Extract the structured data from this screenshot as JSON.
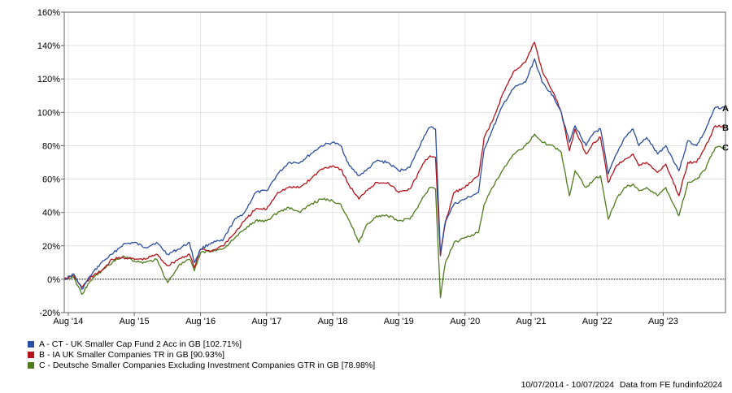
{
  "chart_data": {
    "type": "line",
    "title": "",
    "xlabel": "",
    "ylabel": "",
    "ylim": [
      -20,
      160
    ],
    "xlim": [
      "2014-07-10",
      "2024-07-10"
    ],
    "y_ticks": [
      "-20%",
      "0%",
      "20%",
      "40%",
      "60%",
      "80%",
      "100%",
      "120%",
      "140%",
      "160%"
    ],
    "y_tick_values": [
      -20,
      0,
      20,
      40,
      60,
      80,
      100,
      120,
      140,
      160
    ],
    "x_ticks": [
      "Aug '14",
      "Aug '15",
      "Aug '16",
      "Aug '17",
      "Aug '18",
      "Aug '19",
      "Aug '20",
      "Aug '21",
      "Aug '22",
      "Aug '23"
    ],
    "x_tick_dates": [
      "2014-08-01",
      "2015-08-01",
      "2016-08-01",
      "2017-08-01",
      "2018-08-01",
      "2019-08-01",
      "2020-08-01",
      "2021-08-01",
      "2022-08-01",
      "2023-08-01"
    ],
    "grid": true,
    "legend_position": "bottom-left",
    "series": [
      {
        "name": "A - CT - UK Smaller Cap Fund 2 Acc in GB [102.71%]",
        "end_label": "A",
        "color": "#2a4d9e",
        "points": [
          [
            "2014-07-10",
            0
          ],
          [
            "2014-09-01",
            3
          ],
          [
            "2014-10-15",
            -6
          ],
          [
            "2014-12-01",
            2
          ],
          [
            "2015-02-01",
            10
          ],
          [
            "2015-04-01",
            15
          ],
          [
            "2015-06-01",
            21
          ],
          [
            "2015-08-01",
            22
          ],
          [
            "2015-10-01",
            19
          ],
          [
            "2015-12-01",
            22
          ],
          [
            "2016-02-01",
            15
          ],
          [
            "2016-04-01",
            18
          ],
          [
            "2016-06-01",
            22
          ],
          [
            "2016-06-28",
            10
          ],
          [
            "2016-08-01",
            18
          ],
          [
            "2016-10-01",
            22
          ],
          [
            "2016-12-01",
            23
          ],
          [
            "2017-02-01",
            35
          ],
          [
            "2017-04-01",
            40
          ],
          [
            "2017-06-01",
            52
          ],
          [
            "2017-08-01",
            53
          ],
          [
            "2017-10-01",
            63
          ],
          [
            "2017-12-01",
            70
          ],
          [
            "2018-02-01",
            70
          ],
          [
            "2018-04-01",
            75
          ],
          [
            "2018-06-01",
            80
          ],
          [
            "2018-08-01",
            82
          ],
          [
            "2018-09-15",
            80
          ],
          [
            "2018-11-01",
            68
          ],
          [
            "2018-12-24",
            62
          ],
          [
            "2019-02-01",
            65
          ],
          [
            "2019-04-01",
            71
          ],
          [
            "2019-06-01",
            70
          ],
          [
            "2019-08-01",
            65
          ],
          [
            "2019-10-01",
            67
          ],
          [
            "2019-12-20",
            86
          ],
          [
            "2020-01-20",
            91
          ],
          [
            "2020-02-20",
            90
          ],
          [
            "2020-03-18",
            15
          ],
          [
            "2020-04-15",
            35
          ],
          [
            "2020-06-01",
            45
          ],
          [
            "2020-08-01",
            48
          ],
          [
            "2020-10-15",
            52
          ],
          [
            "2020-11-15",
            78
          ],
          [
            "2021-01-01",
            90
          ],
          [
            "2021-03-01",
            105
          ],
          [
            "2021-05-01",
            115
          ],
          [
            "2021-07-01",
            118
          ],
          [
            "2021-08-20",
            132
          ],
          [
            "2021-10-01",
            118
          ],
          [
            "2021-12-01",
            110
          ],
          [
            "2022-01-15",
            100
          ],
          [
            "2022-03-01",
            82
          ],
          [
            "2022-04-01",
            92
          ],
          [
            "2022-06-01",
            80
          ],
          [
            "2022-07-15",
            88
          ],
          [
            "2022-08-20",
            90
          ],
          [
            "2022-10-01",
            63
          ],
          [
            "2022-11-15",
            75
          ],
          [
            "2023-01-01",
            85
          ],
          [
            "2023-02-15",
            90
          ],
          [
            "2023-03-20",
            80
          ],
          [
            "2023-05-01",
            85
          ],
          [
            "2023-07-01",
            75
          ],
          [
            "2023-08-15",
            80
          ],
          [
            "2023-10-27",
            65
          ],
          [
            "2023-12-15",
            83
          ],
          [
            "2024-02-01",
            80
          ],
          [
            "2024-03-15",
            88
          ],
          [
            "2024-05-15",
            103
          ],
          [
            "2024-07-10",
            102.71
          ]
        ]
      },
      {
        "name": "B - IA UK Smaller Companies TR in GB [90.93%]",
        "end_label": "B",
        "color": "#b5121b",
        "points": [
          [
            "2014-07-10",
            0
          ],
          [
            "2014-09-01",
            2
          ],
          [
            "2014-10-15",
            -5
          ],
          [
            "2014-12-01",
            1
          ],
          [
            "2015-02-01",
            5
          ],
          [
            "2015-04-01",
            12
          ],
          [
            "2015-06-01",
            13
          ],
          [
            "2015-08-01",
            12
          ],
          [
            "2015-10-01",
            12
          ],
          [
            "2015-12-01",
            15
          ],
          [
            "2016-02-01",
            8
          ],
          [
            "2016-04-01",
            12
          ],
          [
            "2016-06-01",
            15
          ],
          [
            "2016-06-28",
            7
          ],
          [
            "2016-08-01",
            18
          ],
          [
            "2016-10-01",
            17
          ],
          [
            "2016-12-01",
            20
          ],
          [
            "2017-02-01",
            27
          ],
          [
            "2017-04-01",
            35
          ],
          [
            "2017-06-01",
            42
          ],
          [
            "2017-08-01",
            42
          ],
          [
            "2017-10-01",
            52
          ],
          [
            "2017-12-01",
            55
          ],
          [
            "2018-02-01",
            55
          ],
          [
            "2018-04-01",
            60
          ],
          [
            "2018-06-01",
            66
          ],
          [
            "2018-08-01",
            68
          ],
          [
            "2018-09-15",
            66
          ],
          [
            "2018-11-01",
            56
          ],
          [
            "2018-12-24",
            48
          ],
          [
            "2019-02-01",
            53
          ],
          [
            "2019-04-01",
            58
          ],
          [
            "2019-06-01",
            58
          ],
          [
            "2019-08-01",
            52
          ],
          [
            "2019-10-01",
            54
          ],
          [
            "2019-12-20",
            70
          ],
          [
            "2020-01-20",
            74
          ],
          [
            "2020-02-20",
            73
          ],
          [
            "2020-03-18",
            14
          ],
          [
            "2020-04-15",
            34
          ],
          [
            "2020-06-01",
            52
          ],
          [
            "2020-08-01",
            55
          ],
          [
            "2020-10-15",
            62
          ],
          [
            "2020-11-15",
            85
          ],
          [
            "2021-01-01",
            95
          ],
          [
            "2021-03-01",
            112
          ],
          [
            "2021-05-01",
            125
          ],
          [
            "2021-07-01",
            130
          ],
          [
            "2021-08-20",
            142
          ],
          [
            "2021-10-01",
            125
          ],
          [
            "2021-12-01",
            112
          ],
          [
            "2022-01-15",
            100
          ],
          [
            "2022-03-01",
            77
          ],
          [
            "2022-04-01",
            90
          ],
          [
            "2022-06-01",
            75
          ],
          [
            "2022-07-15",
            82
          ],
          [
            "2022-08-20",
            85
          ],
          [
            "2022-10-01",
            58
          ],
          [
            "2022-11-15",
            68
          ],
          [
            "2023-01-01",
            72
          ],
          [
            "2023-02-15",
            75
          ],
          [
            "2023-03-20",
            68
          ],
          [
            "2023-05-01",
            70
          ],
          [
            "2023-07-01",
            64
          ],
          [
            "2023-08-15",
            69
          ],
          [
            "2023-10-27",
            50
          ],
          [
            "2023-12-15",
            70
          ],
          [
            "2024-02-01",
            70
          ],
          [
            "2024-03-15",
            78
          ],
          [
            "2024-05-15",
            92
          ],
          [
            "2024-07-10",
            90.93
          ]
        ]
      },
      {
        "name": "C - Deutsche Smaller Companies Excluding Investment Companies GTR in GB [78.98%]",
        "end_label": "C",
        "color": "#4e7b1c",
        "points": [
          [
            "2014-07-10",
            0
          ],
          [
            "2014-09-01",
            1
          ],
          [
            "2014-10-15",
            -9
          ],
          [
            "2014-12-01",
            -1
          ],
          [
            "2015-02-01",
            5
          ],
          [
            "2015-04-01",
            10
          ],
          [
            "2015-06-01",
            14
          ],
          [
            "2015-08-01",
            11
          ],
          [
            "2015-10-01",
            10
          ],
          [
            "2015-12-01",
            12
          ],
          [
            "2016-02-01",
            -2
          ],
          [
            "2016-04-01",
            8
          ],
          [
            "2016-06-01",
            12
          ],
          [
            "2016-06-28",
            5
          ],
          [
            "2016-08-01",
            16
          ],
          [
            "2016-10-01",
            17
          ],
          [
            "2016-12-01",
            18
          ],
          [
            "2017-02-01",
            24
          ],
          [
            "2017-04-01",
            30
          ],
          [
            "2017-06-01",
            35
          ],
          [
            "2017-08-01",
            35
          ],
          [
            "2017-10-01",
            40
          ],
          [
            "2017-12-01",
            43
          ],
          [
            "2018-02-01",
            40
          ],
          [
            "2018-04-01",
            45
          ],
          [
            "2018-06-01",
            48
          ],
          [
            "2018-08-01",
            47
          ],
          [
            "2018-09-15",
            45
          ],
          [
            "2018-11-01",
            35
          ],
          [
            "2018-12-24",
            22
          ],
          [
            "2019-02-01",
            32
          ],
          [
            "2019-04-01",
            38
          ],
          [
            "2019-06-01",
            38
          ],
          [
            "2019-08-01",
            35
          ],
          [
            "2019-10-01",
            36
          ],
          [
            "2019-12-20",
            50
          ],
          [
            "2020-01-20",
            55
          ],
          [
            "2020-02-20",
            54
          ],
          [
            "2020-03-18",
            -11
          ],
          [
            "2020-04-15",
            10
          ],
          [
            "2020-06-01",
            22
          ],
          [
            "2020-08-01",
            25
          ],
          [
            "2020-10-15",
            28
          ],
          [
            "2020-11-15",
            45
          ],
          [
            "2021-01-01",
            55
          ],
          [
            "2021-03-01",
            66
          ],
          [
            "2021-05-01",
            75
          ],
          [
            "2021-07-01",
            80
          ],
          [
            "2021-08-20",
            87
          ],
          [
            "2021-10-01",
            82
          ],
          [
            "2021-12-01",
            80
          ],
          [
            "2022-01-15",
            76
          ],
          [
            "2022-03-01",
            50
          ],
          [
            "2022-04-01",
            65
          ],
          [
            "2022-06-01",
            55
          ],
          [
            "2022-07-15",
            60
          ],
          [
            "2022-08-20",
            62
          ],
          [
            "2022-10-01",
            36
          ],
          [
            "2022-11-15",
            48
          ],
          [
            "2023-01-01",
            55
          ],
          [
            "2023-02-15",
            57
          ],
          [
            "2023-03-20",
            53
          ],
          [
            "2023-05-01",
            55
          ],
          [
            "2023-07-01",
            50
          ],
          [
            "2023-08-15",
            55
          ],
          [
            "2023-10-27",
            38
          ],
          [
            "2023-12-15",
            58
          ],
          [
            "2024-02-01",
            60
          ],
          [
            "2024-03-15",
            65
          ],
          [
            "2024-05-15",
            79
          ],
          [
            "2024-07-10",
            78.98
          ]
        ]
      }
    ]
  },
  "footer": {
    "date_range": "10/07/2014 - 10/07/2024",
    "source": "Data from FE fundinfo2024"
  }
}
